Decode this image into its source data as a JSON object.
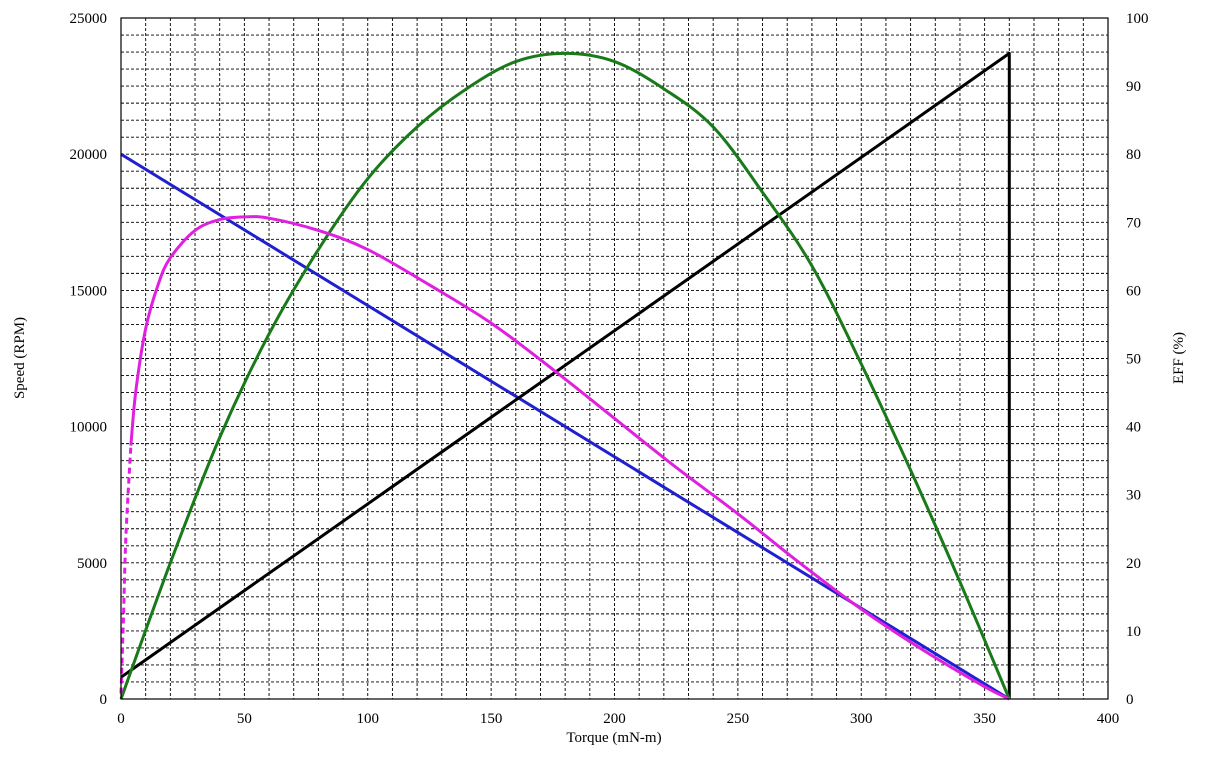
{
  "chart_data": {
    "type": "line",
    "xlabel": "Torque (mN-m)",
    "ylabel": "Speed (RPM)",
    "y2label": "EFF (%)",
    "xlim": [
      0,
      400
    ],
    "ylim": [
      0,
      25000
    ],
    "y2lim": [
      0,
      100
    ],
    "x_ticks": [
      0,
      50,
      100,
      150,
      200,
      250,
      300,
      350,
      400
    ],
    "y_ticks": [
      0,
      5000,
      10000,
      15000,
      20000,
      25000
    ],
    "y2_ticks": [
      0,
      10,
      20,
      30,
      40,
      50,
      60,
      70,
      80,
      90,
      100
    ],
    "grid": true,
    "grid_style": "dashed",
    "series": [
      {
        "color": "#2020d0",
        "axis": "left",
        "style": "solid",
        "x": [
          0,
          360
        ],
        "y": [
          20000,
          0
        ]
      },
      {
        "color": "#000000",
        "axis": "left",
        "style": "solid",
        "x": [
          0,
          360,
          360
        ],
        "y": [
          800,
          23700,
          0
        ]
      },
      {
        "color": "#1a7a1a",
        "axis": "left",
        "style": "solid",
        "x": [
          0,
          20,
          40,
          60,
          80,
          100,
          120,
          140,
          160,
          180,
          200,
          220,
          240,
          260,
          280,
          300,
          320,
          340,
          360
        ],
        "y": [
          0,
          5000,
          9600,
          13400,
          16500,
          19100,
          21000,
          22400,
          23400,
          23700,
          23400,
          22400,
          21000,
          18600,
          15900,
          12300,
          8400,
          4300,
          0
        ]
      },
      {
        "color": "#e020e0",
        "axis": "left",
        "style": "solid",
        "dashed_until_x": 4,
        "x": [
          0,
          1,
          2,
          4,
          6,
          10,
          15,
          20,
          30,
          40,
          50,
          60,
          80,
          100,
          125,
          150,
          175,
          200,
          225,
          250,
          275,
          300,
          325,
          350,
          360
        ],
        "y": [
          200,
          3000,
          6000,
          9300,
          11300,
          13600,
          15200,
          16200,
          17200,
          17600,
          17700,
          17650,
          17200,
          16500,
          15200,
          13800,
          12100,
          10300,
          8500,
          6800,
          5000,
          3300,
          1800,
          450,
          0
        ]
      }
    ]
  }
}
